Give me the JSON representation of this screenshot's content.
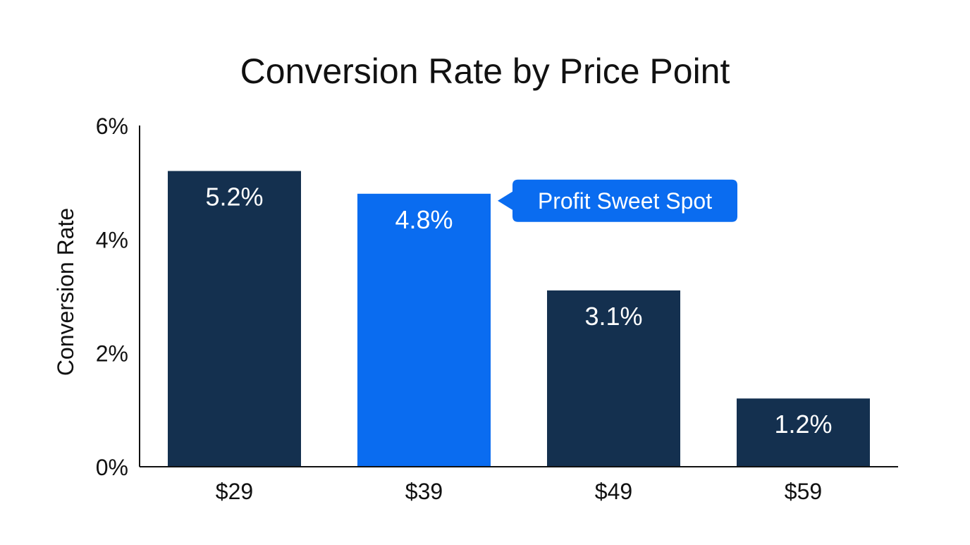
{
  "chart_data": {
    "type": "bar",
    "title": "Conversion Rate by Price Point",
    "xlabel": "",
    "ylabel": "Conversion Rate",
    "categories": [
      "$29",
      "$39",
      "$49",
      "$59"
    ],
    "values": [
      5.2,
      4.8,
      3.1,
      1.2
    ],
    "data_labels": [
      "5.2%",
      "4.8%",
      "3.1%",
      "1.2%"
    ],
    "ylim": [
      0,
      6
    ],
    "yticks": [
      0,
      2,
      4,
      6
    ],
    "ytick_labels": [
      "0%",
      "2%",
      "4%",
      "6%"
    ],
    "grid": false,
    "legend": "none",
    "highlight_index": 1,
    "annotation": {
      "text": "Profit Sweet Spot",
      "target": "$39"
    },
    "colors": {
      "default": "#14304f",
      "highlight": "#0a6cf0",
      "annotation_bg": "#0a6cf0",
      "axis": "#111111",
      "text": "#111111"
    }
  }
}
